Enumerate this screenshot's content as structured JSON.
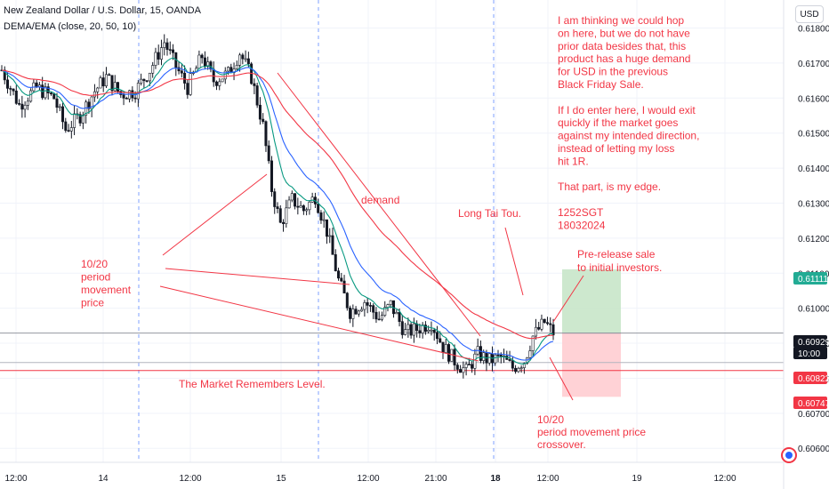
{
  "header": {
    "symbol_line": "New Zealand Dollar / U.S. Dollar, 15, OANDA",
    "indicator_line": "DEMA/EMA (close, 20, 50, 10)"
  },
  "currency_button": "USD",
  "price_axis": {
    "ticks": [
      "0.61800",
      "0.61700",
      "0.61600",
      "0.61500",
      "0.61400",
      "0.61300",
      "0.61200",
      "0.61100",
      "0.61000",
      "0.60900",
      "0.60800",
      "0.60700",
      "0.60600"
    ],
    "badges": [
      {
        "label": "0.61111",
        "color": "#22ab94",
        "text_color": "#ffffff"
      },
      {
        "label": "0.60929",
        "color": "#131722",
        "text_color": "#ffffff"
      },
      {
        "label": "10:00",
        "color": "#131722",
        "text_color": "#ffffff"
      },
      {
        "label": "0.60822",
        "color": "#f23645",
        "text_color": "#ffffff"
      },
      {
        "label": "0.60747",
        "color": "#f23645",
        "text_color": "#ffffff"
      }
    ]
  },
  "time_axis": {
    "ticks": [
      "12:00",
      "14",
      "12:00",
      "15",
      "12:00",
      "21:00",
      "18",
      "12:00",
      "19",
      "12:00"
    ],
    "bold": [
      "18"
    ]
  },
  "annotations": {
    "main_note": [
      "I am thinking we could hop",
      "on here, but we do not have",
      "prior data besides that, this",
      "product has a huge demand",
      "for USD in the previous",
      "Black Friday Sale.",
      "",
      "If I do enter here, I would exit",
      "quickly if the market goes",
      "against my intended direction,",
      "instead of letting my loss",
      "hit 1R.",
      "",
      "That part, is my edge.",
      "",
      "1252SGT",
      "18032024"
    ],
    "demand": "demand",
    "long_tai_tou": "Long Tai Tou.",
    "pre_release": [
      "Pre-release sale",
      "to initial investors."
    ],
    "period_left": [
      "10/20",
      "period",
      "movement",
      "price"
    ],
    "market_remembers": "The Market Remembers Level.",
    "crossover": [
      "10/20",
      "period movement price",
      "crossover."
    ]
  },
  "chart_data": {
    "type": "candlestick",
    "title": "New Zealand Dollar / U.S. Dollar, 15, OANDA",
    "indicator": "DEMA/EMA (close, 20, 50, 10)",
    "ylim": [
      0.6056,
      0.6188
    ],
    "y_ticks": [
      0.618,
      0.617,
      0.616,
      0.615,
      0.614,
      0.613,
      0.612,
      0.611,
      0.61,
      0.609,
      0.608,
      0.607,
      0.606
    ],
    "close_path": [
      {
        "x": 0,
        "y": 0.6168
      },
      {
        "x": 6,
        "y": 0.6158
      },
      {
        "x": 12,
        "y": 0.6163
      },
      {
        "x": 18,
        "y": 0.616
      },
      {
        "x": 22,
        "y": 0.6151
      },
      {
        "x": 27,
        "y": 0.6155
      },
      {
        "x": 32,
        "y": 0.6162
      },
      {
        "x": 36,
        "y": 0.6166
      },
      {
        "x": 41,
        "y": 0.6161
      },
      {
        "x": 46,
        "y": 0.6162
      },
      {
        "x": 51,
        "y": 0.6168
      },
      {
        "x": 56,
        "y": 0.6176
      },
      {
        "x": 60,
        "y": 0.6169
      },
      {
        "x": 64,
        "y": 0.6163
      },
      {
        "x": 69,
        "y": 0.6172
      },
      {
        "x": 73,
        "y": 0.6165
      },
      {
        "x": 78,
        "y": 0.6167
      },
      {
        "x": 82,
        "y": 0.6173
      },
      {
        "x": 86,
        "y": 0.6166
      },
      {
        "x": 90,
        "y": 0.6152
      },
      {
        "x": 93,
        "y": 0.6134
      },
      {
        "x": 96,
        "y": 0.6124
      },
      {
        "x": 100,
        "y": 0.6131
      },
      {
        "x": 104,
        "y": 0.6128
      },
      {
        "x": 108,
        "y": 0.6132
      },
      {
        "x": 112,
        "y": 0.6122
      },
      {
        "x": 116,
        "y": 0.6108
      },
      {
        "x": 120,
        "y": 0.6099
      },
      {
        "x": 125,
        "y": 0.6102
      },
      {
        "x": 130,
        "y": 0.6097
      },
      {
        "x": 134,
        "y": 0.6101
      },
      {
        "x": 139,
        "y": 0.6093
      },
      {
        "x": 143,
        "y": 0.6094
      },
      {
        "x": 148,
        "y": 0.6096
      },
      {
        "x": 152,
        "y": 0.6089
      },
      {
        "x": 156,
        "y": 0.6085
      },
      {
        "x": 160,
        "y": 0.6082
      },
      {
        "x": 164,
        "y": 0.6087
      },
      {
        "x": 168,
        "y": 0.6085
      },
      {
        "x": 172,
        "y": 0.6086
      },
      {
        "x": 176,
        "y": 0.6083
      },
      {
        "x": 180,
        "y": 0.6085
      },
      {
        "x": 183,
        "y": 0.6092
      },
      {
        "x": 187,
        "y": 0.6096
      },
      {
        "x": 190,
        "y": 0.6093
      }
    ],
    "position_tool": {
      "entry": 0.60929,
      "target": 0.61111,
      "stop": 0.60747,
      "ratio": 1.0
    },
    "horizontal_levels": [
      0.60822
    ],
    "current_price": 0.60929,
    "countdown": "10:00"
  }
}
